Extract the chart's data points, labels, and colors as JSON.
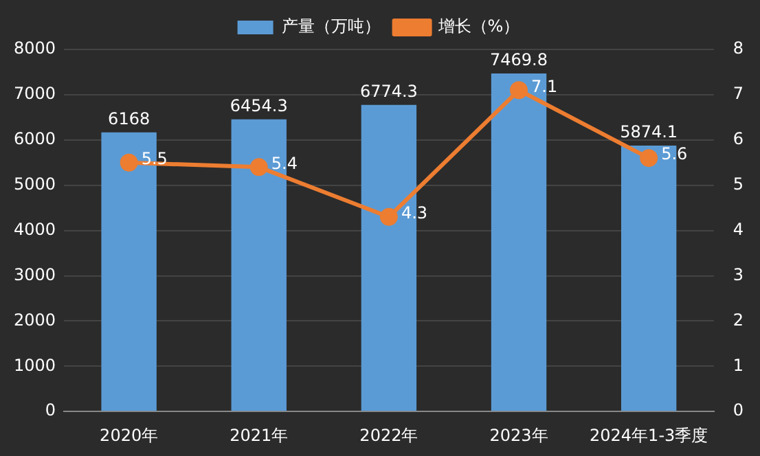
{
  "chart_data": {
    "type": "bar",
    "categories": [
      "2020年",
      "2021年",
      "2022年",
      "2023年",
      "2024年1-3季度"
    ],
    "series": [
      {
        "name": "产量（万吨）",
        "color": "#5b9bd5",
        "values": [
          6168,
          6454.3,
          6774.3,
          7469.8,
          5874.1
        ]
      },
      {
        "name": "增长（%）",
        "type": "line",
        "axis": "y2",
        "color": "#ed7d31",
        "values": [
          5.5,
          5.4,
          4.3,
          7.1,
          5.6
        ]
      }
    ],
    "ylim": [
      0,
      8000
    ],
    "yticks": [
      0,
      1000,
      2000,
      3000,
      4000,
      5000,
      6000,
      7000,
      8000
    ],
    "y2lim": [
      0,
      8
    ],
    "y2ticks": [
      0,
      1,
      2,
      3,
      4,
      5,
      6,
      7,
      8
    ],
    "grid": "y",
    "legend": "top",
    "marker": "circle",
    "line_style": "solid",
    "data_labels": true
  }
}
